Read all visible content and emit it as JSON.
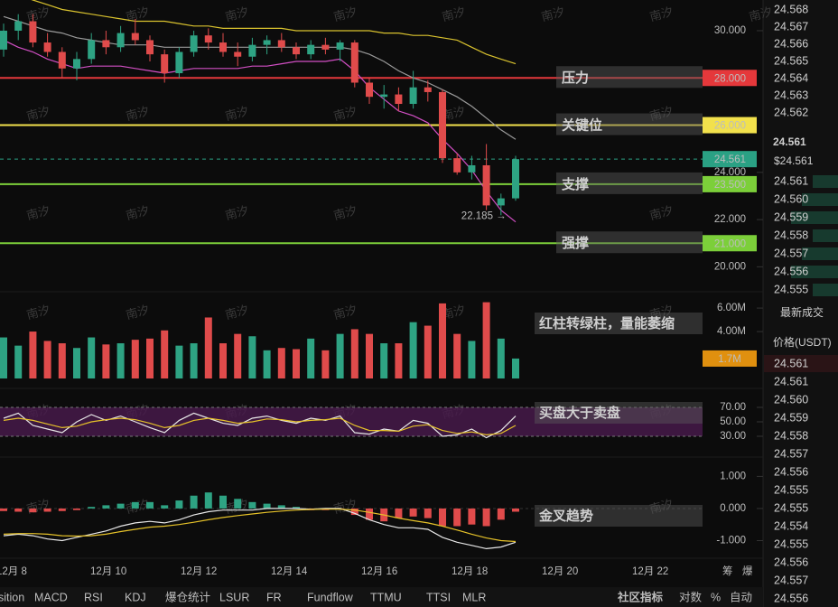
{
  "chart_data": {
    "type": "candlestick",
    "open": [
      29.2,
      30.0,
      30.4,
      29.5,
      29.1,
      28.4,
      28.8,
      29.6,
      29.3,
      29.9,
      29.6,
      29.0,
      28.2,
      29.1,
      29.8,
      29.5,
      29.1,
      28.9,
      29.4,
      29.6,
      29.3,
      29.0,
      29.4,
      29.2,
      29.5,
      27.8,
      27.2,
      27.3,
      26.9,
      27.6,
      27.4,
      24.6,
      24.0,
      24.3,
      22.6,
      22.9
    ],
    "high": [
      30.3,
      30.7,
      30.7,
      29.9,
      29.3,
      29.1,
      29.9,
      30.0,
      30.2,
      30.5,
      29.8,
      29.2,
      29.3,
      30.0,
      30.1,
      29.9,
      29.5,
      29.7,
      29.8,
      29.9,
      29.5,
      29.6,
      29.7,
      29.6,
      29.6,
      28.0,
      27.7,
      27.6,
      28.3,
      27.9,
      27.5,
      24.8,
      24.7,
      25.2,
      23.1,
      24.7
    ],
    "low": [
      28.9,
      29.6,
      29.3,
      28.9,
      28.0,
      27.9,
      28.6,
      29.0,
      29.1,
      29.4,
      28.7,
      27.8,
      28.0,
      28.9,
      29.2,
      28.9,
      28.5,
      28.7,
      29.0,
      29.1,
      28.8,
      28.8,
      29.0,
      28.7,
      27.6,
      26.9,
      26.7,
      26.6,
      26.7,
      27.0,
      24.4,
      23.9,
      23.7,
      22.4,
      22.185,
      22.8
    ],
    "close": [
      30.0,
      30.4,
      29.5,
      29.1,
      28.4,
      28.8,
      29.6,
      29.3,
      29.9,
      29.6,
      29.0,
      28.2,
      29.1,
      29.8,
      29.5,
      29.1,
      28.9,
      29.4,
      29.6,
      29.3,
      29.0,
      29.4,
      29.2,
      29.5,
      27.8,
      27.2,
      27.3,
      26.9,
      27.6,
      27.4,
      24.6,
      24.0,
      24.3,
      22.6,
      22.9,
      24.561
    ],
    "upper": [
      31.6,
      31.5,
      31.3,
      31.1,
      30.9,
      30.8,
      30.7,
      30.6,
      30.5,
      30.4,
      30.4,
      30.4,
      30.3,
      30.2,
      30.2,
      30.1,
      30.1,
      30.1,
      30.1,
      30.1,
      30.0,
      30.0,
      30.0,
      30.0,
      30.0,
      30.0,
      29.9,
      29.9,
      29.8,
      29.8,
      29.7,
      29.6,
      29.3,
      29.0,
      28.8,
      28.6
    ],
    "middle": [
      30.6,
      30.4,
      30.2,
      30.0,
      29.9,
      29.7,
      29.6,
      29.5,
      29.4,
      29.4,
      29.4,
      29.3,
      29.3,
      29.3,
      29.3,
      29.3,
      29.3,
      29.3,
      29.3,
      29.3,
      29.3,
      29.3,
      29.3,
      29.3,
      29.2,
      29.0,
      28.7,
      28.3,
      28.0,
      27.8,
      27.5,
      27.2,
      26.8,
      26.3,
      25.8,
      25.4
    ],
    "lower": [
      29.6,
      29.3,
      29.1,
      28.8,
      28.6,
      28.4,
      28.5,
      28.5,
      28.5,
      28.4,
      28.3,
      28.2,
      28.3,
      28.4,
      28.4,
      28.4,
      28.4,
      28.5,
      28.5,
      28.6,
      28.7,
      28.7,
      28.7,
      28.8,
      28.3,
      27.6,
      27.1,
      26.6,
      26.4,
      26.1,
      25.4,
      24.8,
      24.1,
      23.2,
      22.4,
      21.9
    ],
    "up_color": "#2ea383",
    "down_color": "#e04b4b",
    "band_colors": {
      "upper": "#d9c22e",
      "middle": "#9a9a9a",
      "lower": "#d24fc4"
    },
    "ylim": [
      19.25,
      31.3
    ],
    "yticks": [
      {
        "value": 30,
        "label": "30.000"
      },
      {
        "value": 24,
        "label": "24.000"
      },
      {
        "value": 22,
        "label": "22.000"
      },
      {
        "value": 20,
        "label": "20.000"
      }
    ],
    "levels": [
      {
        "name": "压力",
        "value": 28,
        "label": "28.000",
        "color": "#e5383b"
      },
      {
        "name": "关键位",
        "value": 26,
        "label": "26.000",
        "color": "#f2e14c"
      },
      {
        "name": "支撑",
        "value": 23.5,
        "label": "23.500",
        "color": "#7ccf3a"
      },
      {
        "name": "强撑",
        "value": 21,
        "label": "21.000",
        "color": "#7ccf3a"
      }
    ],
    "current_price": {
      "value": 24.561,
      "label": "24.561",
      "color": "#2aa184"
    },
    "low_annotation": {
      "value": 22.185,
      "label": "22.185 →"
    },
    "x_labels": [
      "12月 8",
      "12月 10",
      "12月 12",
      "12月 14",
      "12月 16",
      "12月 18",
      "12月 20",
      "12月 22"
    ],
    "volume": {
      "values": [
        3.5,
        2.8,
        4.0,
        3.2,
        3.0,
        2.6,
        3.5,
        2.9,
        3.0,
        3.3,
        3.4,
        4.1,
        2.8,
        3.0,
        5.2,
        3.0,
        3.8,
        3.6,
        2.4,
        2.6,
        2.5,
        3.4,
        2.4,
        3.8,
        4.2,
        3.8,
        3.0,
        3.0,
        4.8,
        4.5,
        6.4,
        3.8,
        3.2,
        6.5,
        3.4,
        1.7
      ],
      "ylim": [
        0,
        6.7
      ],
      "yticks": [
        {
          "value": 6,
          "label": "6.00M"
        },
        {
          "value": 4,
          "label": "4.00M"
        }
      ],
      "current": {
        "value": 1.7,
        "label": "1.7M",
        "color": "#e0900f"
      },
      "note": "红柱转绿柱，量能萎缩"
    },
    "rsi": {
      "series": [
        {
          "color": "#e8e8e8",
          "values": [
            55,
            62,
            45,
            40,
            35,
            50,
            60,
            52,
            58,
            50,
            42,
            35,
            52,
            62,
            55,
            48,
            45,
            55,
            58,
            52,
            48,
            55,
            52,
            58,
            35,
            33,
            40,
            37,
            52,
            48,
            30,
            32,
            40,
            28,
            38,
            58
          ]
        },
        {
          "color": "#e6c229",
          "values": [
            52,
            55,
            52,
            47,
            42,
            44,
            50,
            53,
            55,
            53,
            48,
            42,
            45,
            52,
            55,
            52,
            48,
            50,
            54,
            53,
            50,
            52,
            53,
            55,
            45,
            38,
            38,
            37,
            44,
            46,
            38,
            34,
            36,
            32,
            34,
            45
          ]
        }
      ],
      "band": [
        30,
        70
      ],
      "band_color": "#4a1a4d",
      "ylim": [
        2.5,
        87.5
      ],
      "yticks": [
        {
          "value": 70,
          "label": "70.00"
        },
        {
          "value": 50,
          "label": "50.00"
        },
        {
          "value": 30,
          "label": "30.00"
        }
      ],
      "note": "买盘大于卖盘"
    },
    "macd": {
      "histogram": [
        -0.08,
        -0.1,
        -0.12,
        -0.1,
        -0.08,
        -0.05,
        0.05,
        0.1,
        0.15,
        0.2,
        0.2,
        0.1,
        0.25,
        0.4,
        0.5,
        0.4,
        0.3,
        0.2,
        0.15,
        0.1,
        0.05,
        -0.05,
        -0.05,
        -0.02,
        -0.2,
        -0.35,
        -0.4,
        -0.3,
        -0.25,
        -0.3,
        -0.55,
        -0.55,
        -0.5,
        -0.55,
        -0.35,
        -0.1
      ],
      "series": [
        {
          "color": "#e8e8e8",
          "values": [
            -0.85,
            -0.8,
            -0.85,
            -0.95,
            -1.0,
            -0.9,
            -0.8,
            -0.7,
            -0.55,
            -0.45,
            -0.4,
            -0.45,
            -0.35,
            -0.2,
            -0.1,
            -0.05,
            -0.05,
            -0.05,
            0.0,
            0.0,
            0.0,
            -0.02,
            0.0,
            0.0,
            -0.15,
            -0.35,
            -0.5,
            -0.6,
            -0.6,
            -0.65,
            -0.9,
            -1.05,
            -1.15,
            -1.25,
            -1.2,
            -1.05
          ]
        },
        {
          "color": "#e6c229",
          "values": [
            -0.8,
            -0.78,
            -0.78,
            -0.8,
            -0.85,
            -0.86,
            -0.85,
            -0.8,
            -0.72,
            -0.65,
            -0.58,
            -0.55,
            -0.5,
            -0.43,
            -0.35,
            -0.28,
            -0.22,
            -0.17,
            -0.12,
            -0.08,
            -0.05,
            -0.03,
            -0.02,
            -0.02,
            -0.05,
            -0.12,
            -0.2,
            -0.3,
            -0.38,
            -0.45,
            -0.55,
            -0.67,
            -0.8,
            -0.92,
            -1.0,
            -1.03
          ]
        }
      ],
      "ylim": [
        -1.465,
        1.49
      ],
      "yticks": [
        {
          "value": 1,
          "label": "1.000"
        },
        {
          "value": 0,
          "label": "0.000"
        },
        {
          "value": -1,
          "label": "-1.000"
        }
      ],
      "note": "金叉趋势"
    },
    "watermark": "南汐",
    "corner_labels": [
      "筹",
      "爆"
    ]
  },
  "order_book": {
    "asks": [
      "24.568",
      "24.567",
      "24.566",
      "24.565",
      "24.564",
      "24.563",
      "24.562"
    ],
    "last": "24.561",
    "last_usd": "$24.561",
    "bids": [
      "24.561",
      "24.560",
      "24.559",
      "24.558",
      "24.557",
      "24.556",
      "24.555"
    ]
  },
  "trades": {
    "title": "最新成交",
    "column": "价格(USDT)",
    "rows": [
      {
        "price": "24.561",
        "color": "#e04b4b"
      },
      {
        "price": "24.561",
        "color": "#2ea383"
      },
      {
        "price": "24.560",
        "color": "#2ea383"
      },
      {
        "price": "24.559",
        "color": "#2ea383"
      },
      {
        "price": "24.558",
        "color": "#2ea383"
      },
      {
        "price": "24.557",
        "color": "#2ea383"
      },
      {
        "price": "24.556",
        "color": "#2ea383"
      },
      {
        "price": "24.555",
        "color": "#2ea383"
      },
      {
        "price": "24.555",
        "color": "#2ea383"
      },
      {
        "price": "24.554",
        "color": "#e04b4b"
      },
      {
        "price": "24.555",
        "color": "#e04b4b"
      },
      {
        "price": "24.556",
        "color": "#2ea383"
      },
      {
        "price": "24.557",
        "color": "#2ea383"
      },
      {
        "price": "24.556",
        "color": "#2ea383"
      }
    ]
  },
  "tabs": {
    "left": [
      "sition",
      "MACD",
      "RSI",
      "KDJ",
      "爆仓统计",
      "LSUR",
      "FR",
      "Fundflow",
      "TTMU",
      "TTSI",
      "MLR"
    ],
    "active": [
      "MACD",
      "RSI"
    ],
    "right": [
      "社区指标",
      "对数",
      "%",
      "自动"
    ]
  }
}
